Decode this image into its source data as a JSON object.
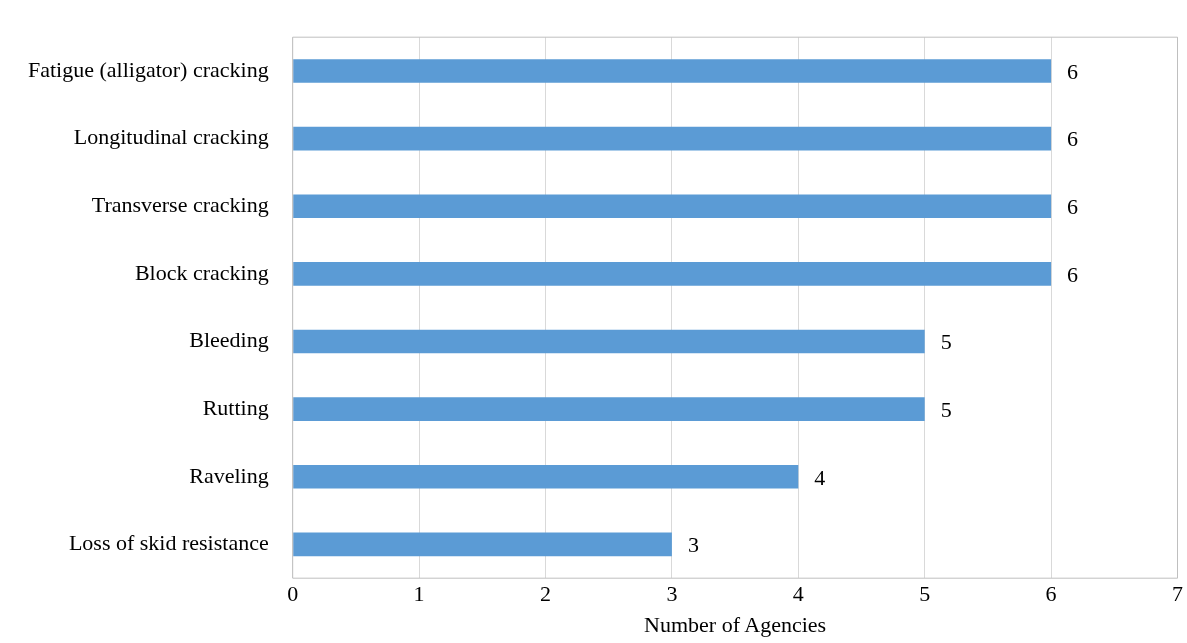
{
  "chart_data": {
    "type": "bar",
    "orientation": "horizontal",
    "xlabel": "Number of Agencies",
    "categories": [
      "Fatigue (alligator) cracking",
      "Longitudinal cracking",
      "Transverse cracking",
      "Block cracking",
      "Bleeding",
      "Rutting",
      "Raveling",
      "Loss of skid resistance"
    ],
    "values": [
      6,
      6,
      6,
      6,
      5,
      5,
      4,
      3
    ],
    "color": "#5b9bd5",
    "xlim": [
      0,
      7
    ],
    "xticks": [
      0,
      1,
      2,
      3,
      4,
      5,
      6,
      7
    ],
    "grid": "x",
    "data_labels": true,
    "legend": false
  }
}
